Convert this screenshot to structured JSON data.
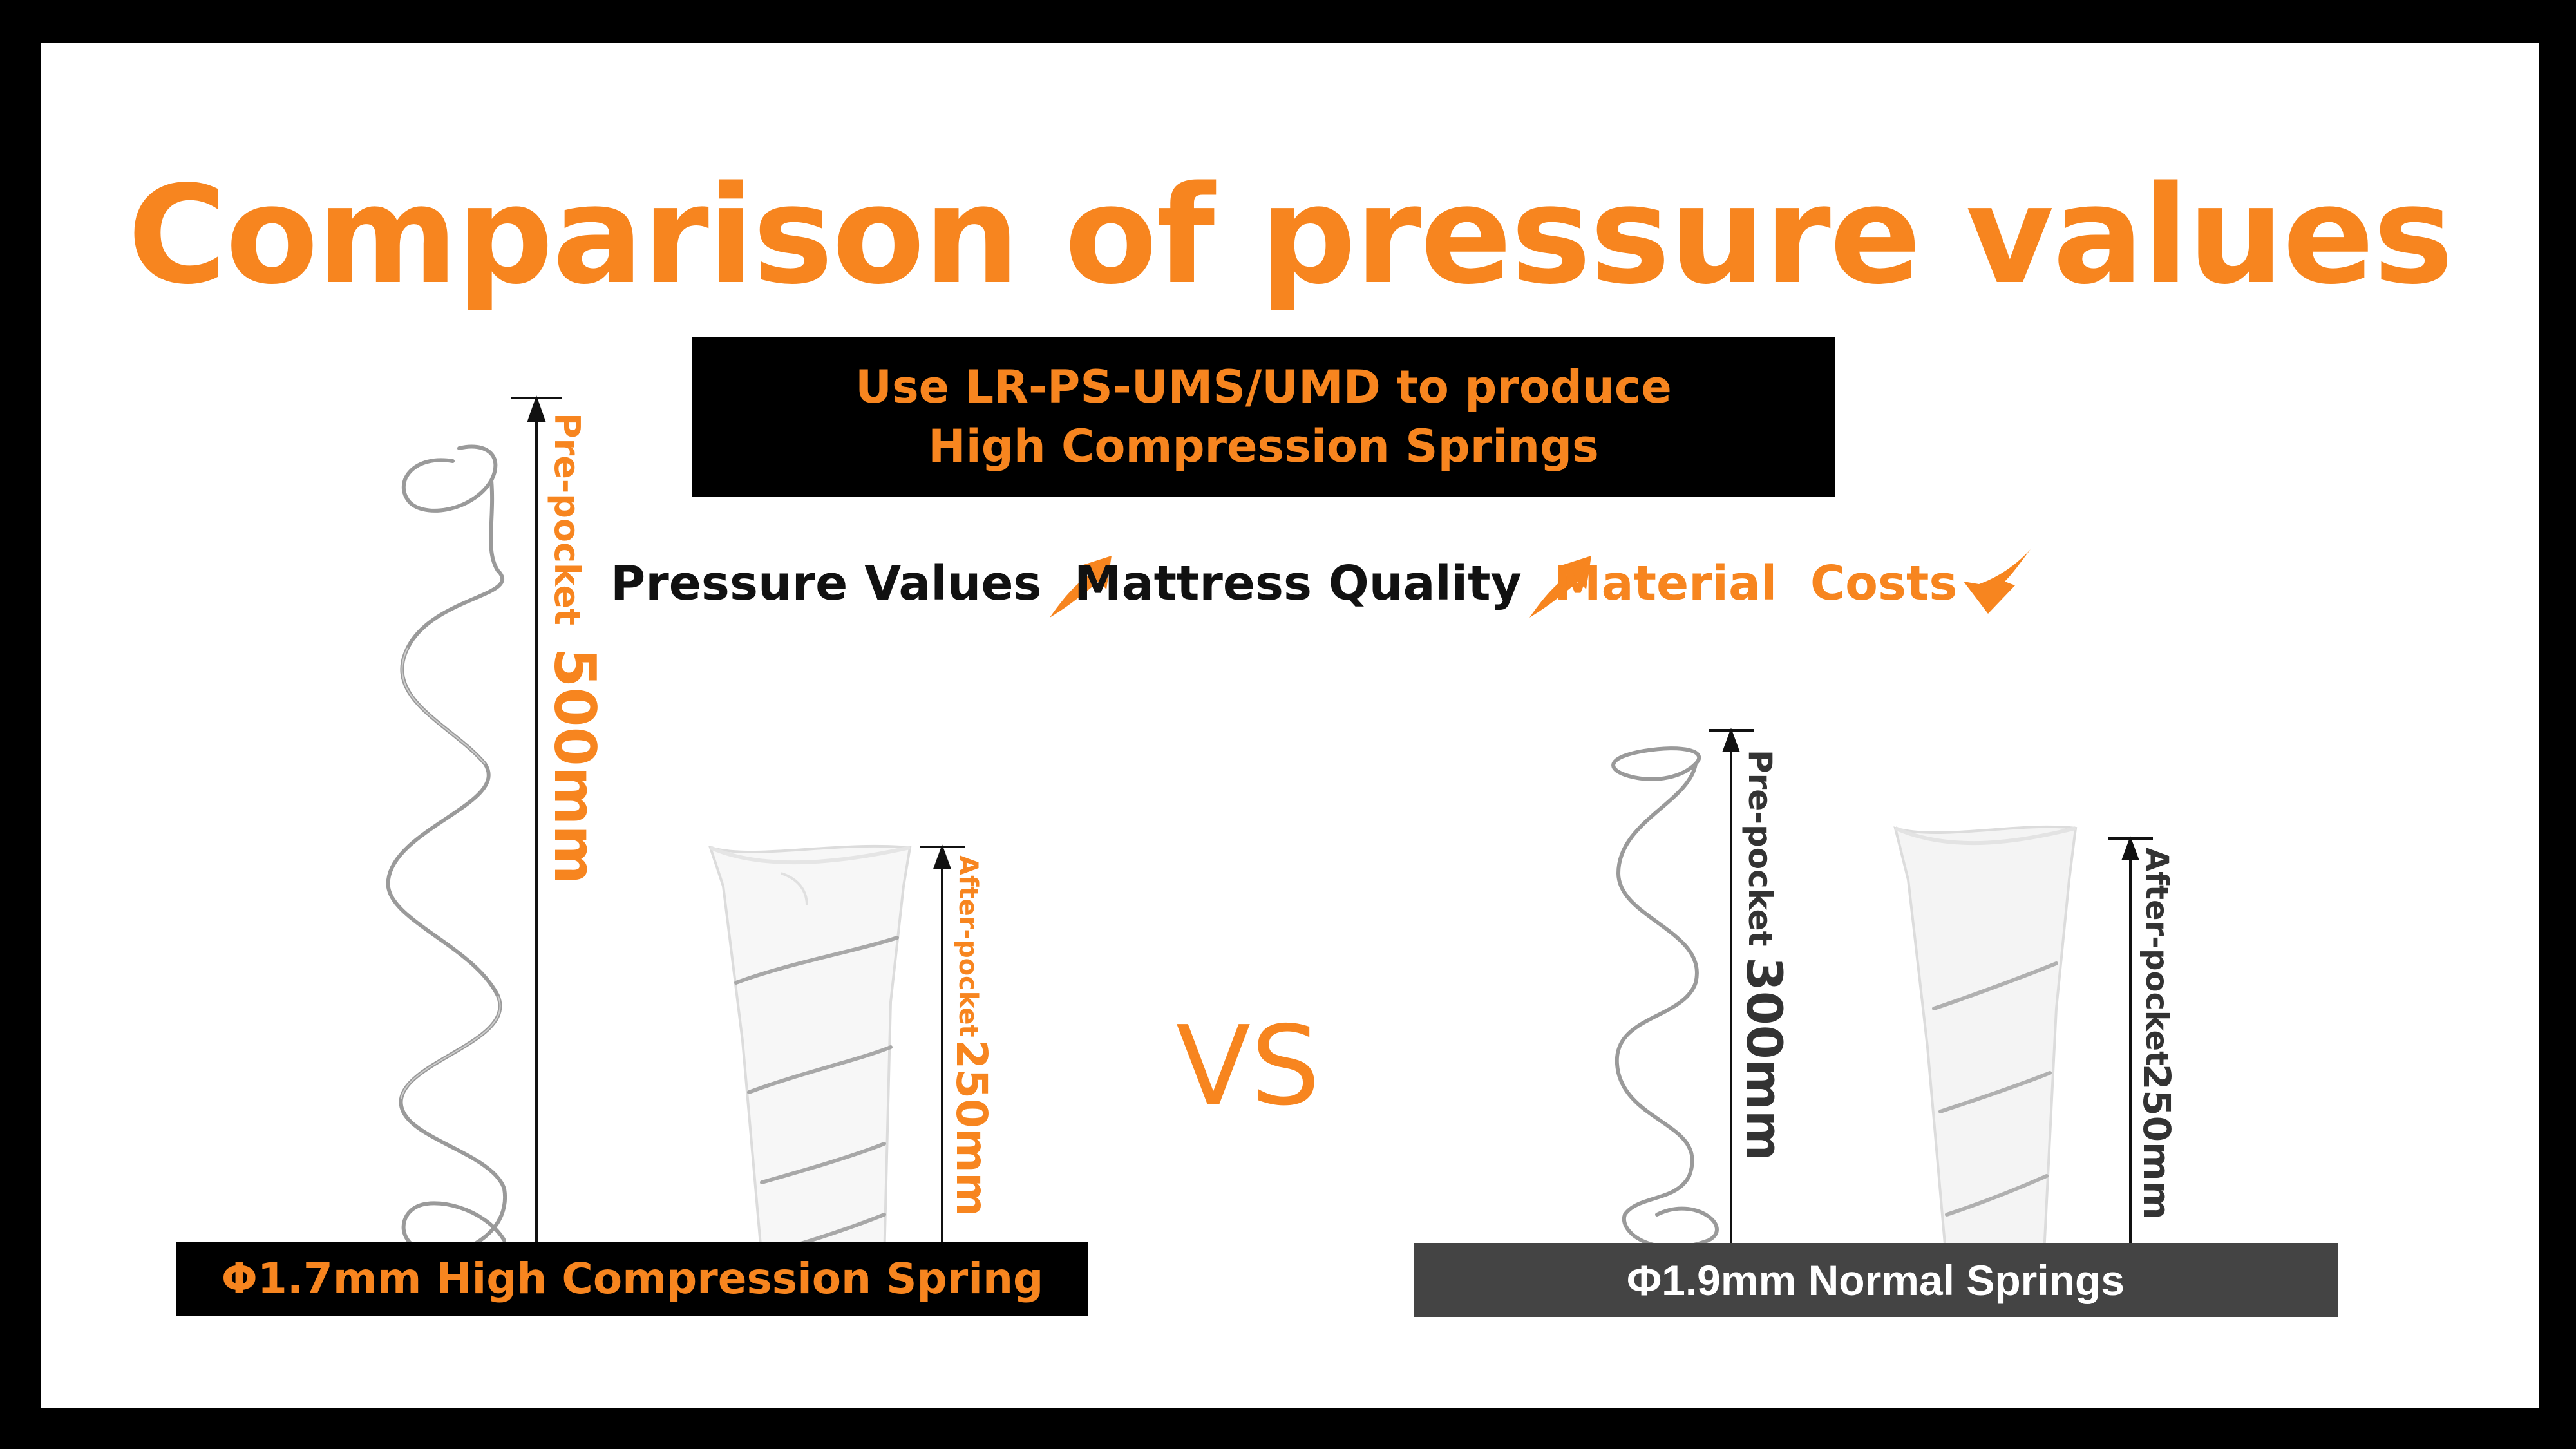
{
  "title": "Comparison of pressure values",
  "method": {
    "line1": "Use LR-PS-UMS/UMD to produce",
    "line2": "High Compression Springs"
  },
  "metrics": [
    {
      "label": "Pressure Values",
      "trend": "up",
      "icon": "arrow-up-icon"
    },
    {
      "label": "Mattress Quality",
      "trend": "up",
      "icon": "arrow-up-icon"
    },
    {
      "label": "Material  Costs",
      "trend": "down",
      "icon": "arrow-down-icon"
    }
  ],
  "left_spring": {
    "pre_label": "Pre-pocket",
    "pre_value": "500mm",
    "after_label": "After-pocket",
    "after_value": "250mm",
    "caption": "Φ1.7mm High Compression Spring"
  },
  "right_spring": {
    "pre_label": "Pre-pocket",
    "pre_value": "300mm",
    "after_label": "After-pocket",
    "after_value": "250mm",
    "caption": "Φ1.9mm Normal Springs"
  },
  "vs": "VS",
  "colors": {
    "accent": "#f7851f",
    "background": "#ffffff",
    "frame": "#000000",
    "dark_caption": "#444444",
    "text_dark": "#111111"
  }
}
